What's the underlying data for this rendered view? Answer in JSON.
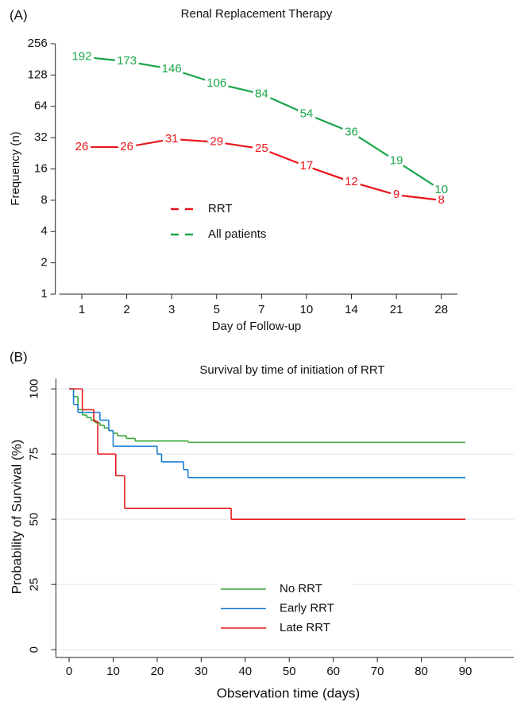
{
  "chart_data": [
    {
      "type": "line",
      "panel_label": "(A)",
      "title": "Renal Replacement Therapy",
      "x_label": "Day of Follow-up",
      "y_label": "Frequency (n)",
      "categories": [
        "1",
        "2",
        "3",
        "5",
        "7",
        "10",
        "14",
        "21",
        "28"
      ],
      "log_scale": true,
      "ylim": [
        1,
        256
      ],
      "yticks": [
        1,
        2,
        4,
        8,
        16,
        32,
        64,
        128,
        256
      ],
      "data_labels": true,
      "legend": "center",
      "series": [
        {
          "name": "RRT",
          "color": "#e8151b",
          "values": [
            26,
            26,
            31,
            29,
            25,
            17,
            12,
            9,
            8
          ]
        },
        {
          "name": "All patients",
          "color": "#1aa64a",
          "values": [
            192,
            173,
            146,
            106,
            84,
            54,
            36,
            19,
            10
          ]
        }
      ]
    },
    {
      "type": "step",
      "panel_label": "(B)",
      "title": "Survival by time of initiation of RRT",
      "x_label": "Observation time (days)",
      "y_label": "Probability of Survival (%)",
      "xlim": [
        -3,
        101
      ],
      "xticks": [
        0,
        10,
        20,
        30,
        40,
        50,
        60,
        70,
        80,
        90
      ],
      "ylim": [
        -3,
        104
      ],
      "yticks": [
        0,
        25,
        50,
        75,
        100
      ],
      "grid": true,
      "legend": "bottom",
      "series": [
        {
          "name": "No RRT",
          "color": "#3aa63a",
          "x": [
            0,
            1,
            2,
            3,
            4,
            5,
            6,
            7,
            8,
            9,
            10,
            11,
            13,
            15,
            27,
            90
          ],
          "values": [
            100,
            97,
            92,
            90,
            89,
            88,
            87,
            86,
            85,
            84,
            83,
            82,
            81,
            80,
            79.5,
            79.5
          ]
        },
        {
          "name": "Early RRT",
          "color": "#1f7fd6",
          "x": [
            0,
            1,
            2,
            6,
            7,
            9,
            10,
            19,
            20,
            21,
            25,
            26,
            27,
            90
          ],
          "values": [
            100,
            94,
            91,
            91,
            88,
            84,
            78,
            78,
            75,
            72,
            72,
            69,
            66,
            66
          ]
        },
        {
          "name": "Late RRT",
          "color": "#e41a1c",
          "x": [
            0,
            3,
            5.6,
            6.5,
            10.6,
            12.6,
            36.8,
            90
          ],
          "values": [
            100,
            92,
            87.5,
            75,
            66.7,
            54.2,
            50,
            50
          ]
        }
      ]
    }
  ]
}
